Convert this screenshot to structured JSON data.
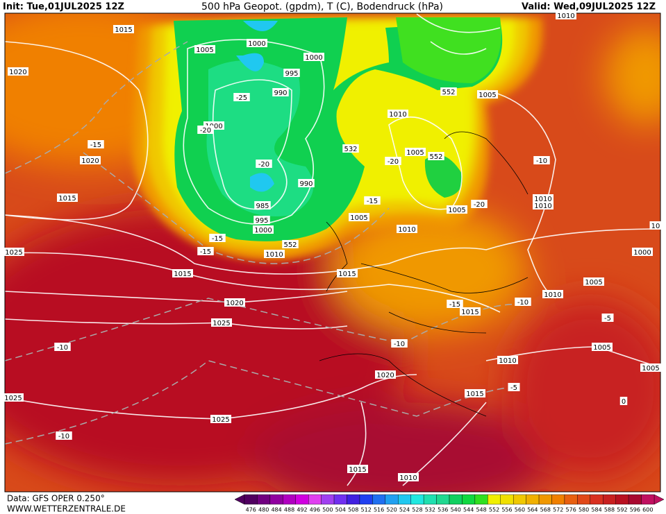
{
  "header": {
    "init": "Init: Tue,01JUL2025 12Z",
    "title": "500 hPa Geopot. (gpdm), T (C), Bodendruck (hPa)",
    "valid": "Valid: Wed,09JUL2025 12Z"
  },
  "footer": {
    "data_source": "Data: GFS OPER 0.250°",
    "website": "WWW.WETTERZENTRALE.DE"
  },
  "contour_labels": [
    "1015",
    "1005",
    "1000",
    "1000",
    "1020",
    "995",
    "990",
    "-25",
    "1000",
    "-20",
    "-15",
    "1020",
    "532",
    "1010",
    "1005",
    "552",
    "-20",
    "-20",
    "990",
    "1015",
    "985",
    "995",
    "1000",
    "1005",
    "-15",
    "1005",
    "-20",
    "1010",
    "552",
    "-15",
    "1010",
    "-15",
    "1025",
    "1015",
    "1015",
    "1020",
    "1025",
    "-10",
    "-15",
    "1015",
    "-10",
    "1010",
    "1005",
    "1000",
    "1010",
    "1010",
    "-10",
    "1005",
    "552",
    "1010",
    "10",
    "-5",
    "1005",
    "1005",
    "1010",
    "-10",
    "1020",
    "-5",
    "1015",
    "0",
    "1025",
    "1025",
    "-10",
    "1015",
    "1010"
  ],
  "colorbar": {
    "labels": [
      476,
      480,
      484,
      488,
      492,
      496,
      500,
      504,
      508,
      512,
      516,
      520,
      524,
      528,
      532,
      536,
      540,
      544,
      548,
      552,
      556,
      560,
      564,
      568,
      572,
      576,
      580,
      584,
      588,
      592,
      596,
      600
    ],
    "colors": [
      "#500060",
      "#700080",
      "#9000a0",
      "#b000c0",
      "#d000e0",
      "#e040f0",
      "#a040f0",
      "#7030f0",
      "#4020e0",
      "#2040f0",
      "#2070f0",
      "#20a0f0",
      "#20c8f0",
      "#20e8e0",
      "#20e0b0",
      "#20d890",
      "#10d060",
      "#10d840",
      "#30e020",
      "#f0f000",
      "#f0e000",
      "#f0c800",
      "#f0b000",
      "#f09800",
      "#f08000",
      "#e86010",
      "#e04818",
      "#d83020",
      "#c82020",
      "#b81020",
      "#a80830",
      "#c01060"
    ]
  }
}
